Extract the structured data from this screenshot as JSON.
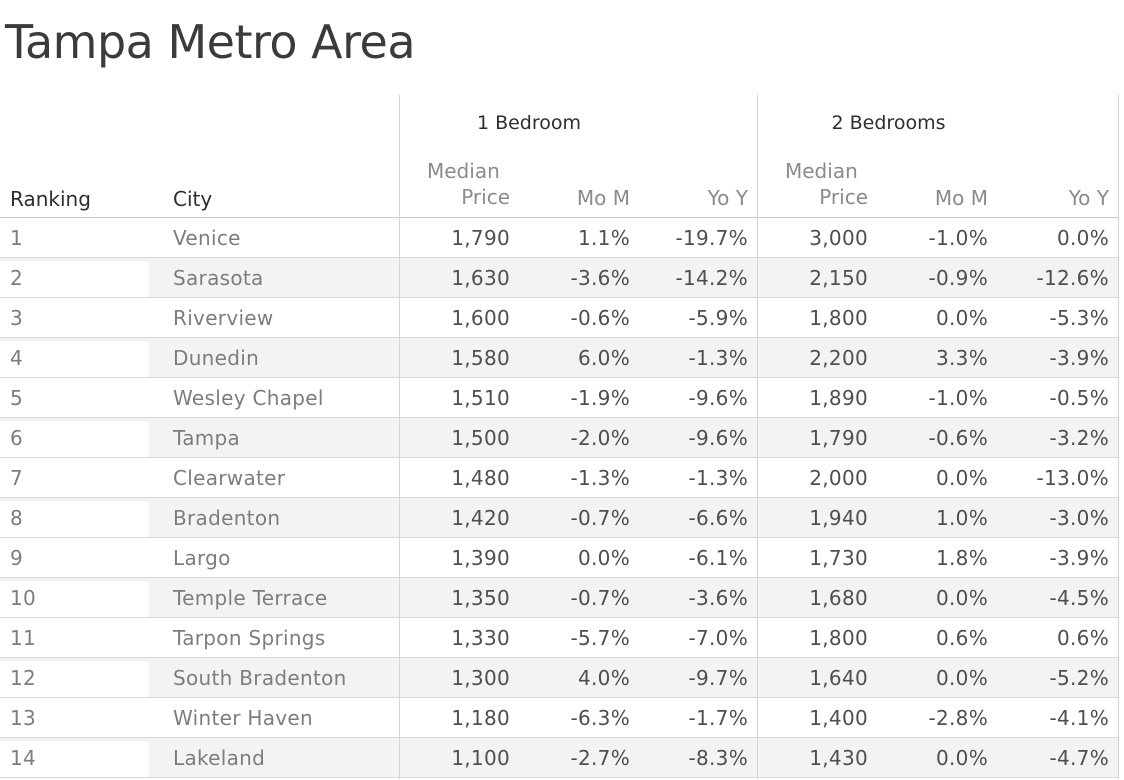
{
  "title": "Tampa Metro Area",
  "table": {
    "field_labels": {
      "ranking": "Ranking",
      "city": "City"
    },
    "panes": [
      {
        "label": "1 Bedroom",
        "sub": {
          "line1": "Median",
          "price": "Price",
          "mom": "Mo M",
          "yoy": "Yo Y"
        }
      },
      {
        "label": "2 Bedrooms",
        "sub": {
          "line1": "Median",
          "price": "Price",
          "mom": "Mo M",
          "yoy": "Yo Y"
        }
      }
    ],
    "rows": [
      {
        "rank": "1",
        "city": "Venice",
        "b1_price": "1,790",
        "b1_mom": "1.1%",
        "b1_yoy": "-19.7%",
        "b2_price": "3,000",
        "b2_mom": "-1.0%",
        "b2_yoy": "0.0%"
      },
      {
        "rank": "2",
        "city": "Sarasota",
        "b1_price": "1,630",
        "b1_mom": "-3.6%",
        "b1_yoy": "-14.2%",
        "b2_price": "2,150",
        "b2_mom": "-0.9%",
        "b2_yoy": "-12.6%"
      },
      {
        "rank": "3",
        "city": "Riverview",
        "b1_price": "1,600",
        "b1_mom": "-0.6%",
        "b1_yoy": "-5.9%",
        "b2_price": "1,800",
        "b2_mom": "0.0%",
        "b2_yoy": "-5.3%"
      },
      {
        "rank": "4",
        "city": "Dunedin",
        "b1_price": "1,580",
        "b1_mom": "6.0%",
        "b1_yoy": "-1.3%",
        "b2_price": "2,200",
        "b2_mom": "3.3%",
        "b2_yoy": "-3.9%"
      },
      {
        "rank": "5",
        "city": "Wesley Chapel",
        "b1_price": "1,510",
        "b1_mom": "-1.9%",
        "b1_yoy": "-9.6%",
        "b2_price": "1,890",
        "b2_mom": "-1.0%",
        "b2_yoy": "-0.5%"
      },
      {
        "rank": "6",
        "city": "Tampa",
        "b1_price": "1,500",
        "b1_mom": "-2.0%",
        "b1_yoy": "-9.6%",
        "b2_price": "1,790",
        "b2_mom": "-0.6%",
        "b2_yoy": "-3.2%"
      },
      {
        "rank": "7",
        "city": "Clearwater",
        "b1_price": "1,480",
        "b1_mom": "-1.3%",
        "b1_yoy": "-1.3%",
        "b2_price": "2,000",
        "b2_mom": "0.0%",
        "b2_yoy": "-13.0%"
      },
      {
        "rank": "8",
        "city": "Bradenton",
        "b1_price": "1,420",
        "b1_mom": "-0.7%",
        "b1_yoy": "-6.6%",
        "b2_price": "1,940",
        "b2_mom": "1.0%",
        "b2_yoy": "-3.0%"
      },
      {
        "rank": "9",
        "city": "Largo",
        "b1_price": "1,390",
        "b1_mom": "0.0%",
        "b1_yoy": "-6.1%",
        "b2_price": "1,730",
        "b2_mom": "1.8%",
        "b2_yoy": "-3.9%"
      },
      {
        "rank": "10",
        "city": "Temple Terrace",
        "b1_price": "1,350",
        "b1_mom": "-0.7%",
        "b1_yoy": "-3.6%",
        "b2_price": "1,680",
        "b2_mom": "0.0%",
        "b2_yoy": "-4.5%"
      },
      {
        "rank": "11",
        "city": "Tarpon Springs",
        "b1_price": "1,330",
        "b1_mom": "-5.7%",
        "b1_yoy": "-7.0%",
        "b2_price": "1,800",
        "b2_mom": "0.6%",
        "b2_yoy": "0.6%"
      },
      {
        "rank": "12",
        "city": "South Bradenton",
        "b1_price": "1,300",
        "b1_mom": "4.0%",
        "b1_yoy": "-9.7%",
        "b2_price": "1,640",
        "b2_mom": "0.0%",
        "b2_yoy": "-5.2%"
      },
      {
        "rank": "13",
        "city": "Winter Haven",
        "b1_price": "1,180",
        "b1_mom": "-6.3%",
        "b1_yoy": "-1.7%",
        "b2_price": "1,400",
        "b2_mom": "-2.8%",
        "b2_yoy": "-4.1%"
      },
      {
        "rank": "14",
        "city": "Lakeland",
        "b1_price": "1,100",
        "b1_mom": "-2.7%",
        "b1_yoy": "-8.3%",
        "b2_price": "1,430",
        "b2_mom": "0.0%",
        "b2_yoy": "-4.7%"
      }
    ]
  },
  "colors": {
    "stripe": "#f3f3f3",
    "row_line": "#d8d8d8",
    "header_line": "#c8c8c8",
    "pane_divider": "#d3d3d3",
    "title_text": "#3b3b3d",
    "header_text": "#2e2e2e",
    "subheader_text": "#8b8b8b",
    "row_header_text": "#7d7d7d",
    "value_text": "#4f4f4f"
  },
  "chart_data": {
    "type": "table",
    "title": "Tampa Metro Area",
    "column_groups": [
      "",
      "",
      "1 Bedroom",
      "1 Bedroom",
      "1 Bedroom",
      "2 Bedrooms",
      "2 Bedrooms",
      "2 Bedrooms"
    ],
    "columns": [
      "Ranking",
      "City",
      "Median Price",
      "Mo M",
      "Yo Y",
      "Median Price",
      "Mo M",
      "Yo Y"
    ],
    "rows": [
      [
        1,
        "Venice",
        1790,
        1.1,
        -19.7,
        3000,
        -1.0,
        0.0
      ],
      [
        2,
        "Sarasota",
        1630,
        -3.6,
        -14.2,
        2150,
        -0.9,
        -12.6
      ],
      [
        3,
        "Riverview",
        1600,
        -0.6,
        -5.9,
        1800,
        0.0,
        -5.3
      ],
      [
        4,
        "Dunedin",
        1580,
        6.0,
        -1.3,
        2200,
        3.3,
        -3.9
      ],
      [
        5,
        "Wesley Chapel",
        1510,
        -1.9,
        -9.6,
        1890,
        -1.0,
        -0.5
      ],
      [
        6,
        "Tampa",
        1500,
        -2.0,
        -9.6,
        1790,
        -0.6,
        -3.2
      ],
      [
        7,
        "Clearwater",
        1480,
        -1.3,
        -1.3,
        2000,
        0.0,
        -13.0
      ],
      [
        8,
        "Bradenton",
        1420,
        -0.7,
        -6.6,
        1940,
        1.0,
        -3.0
      ],
      [
        9,
        "Largo",
        1390,
        0.0,
        -6.1,
        1730,
        1.8,
        -3.9
      ],
      [
        10,
        "Temple Terrace",
        1350,
        -0.7,
        -3.6,
        1680,
        0.0,
        -4.5
      ],
      [
        11,
        "Tarpon Springs",
        1330,
        -5.7,
        -7.0,
        1800,
        0.6,
        0.6
      ],
      [
        12,
        "South Bradenton",
        1300,
        4.0,
        -9.7,
        1640,
        0.0,
        -5.2
      ],
      [
        13,
        "Winter Haven",
        1180,
        -6.3,
        -1.7,
        1400,
        -2.8,
        -4.1
      ],
      [
        14,
        "Lakeland",
        1100,
        -2.7,
        -8.3,
        1430,
        0.0,
        -4.7
      ]
    ]
  }
}
